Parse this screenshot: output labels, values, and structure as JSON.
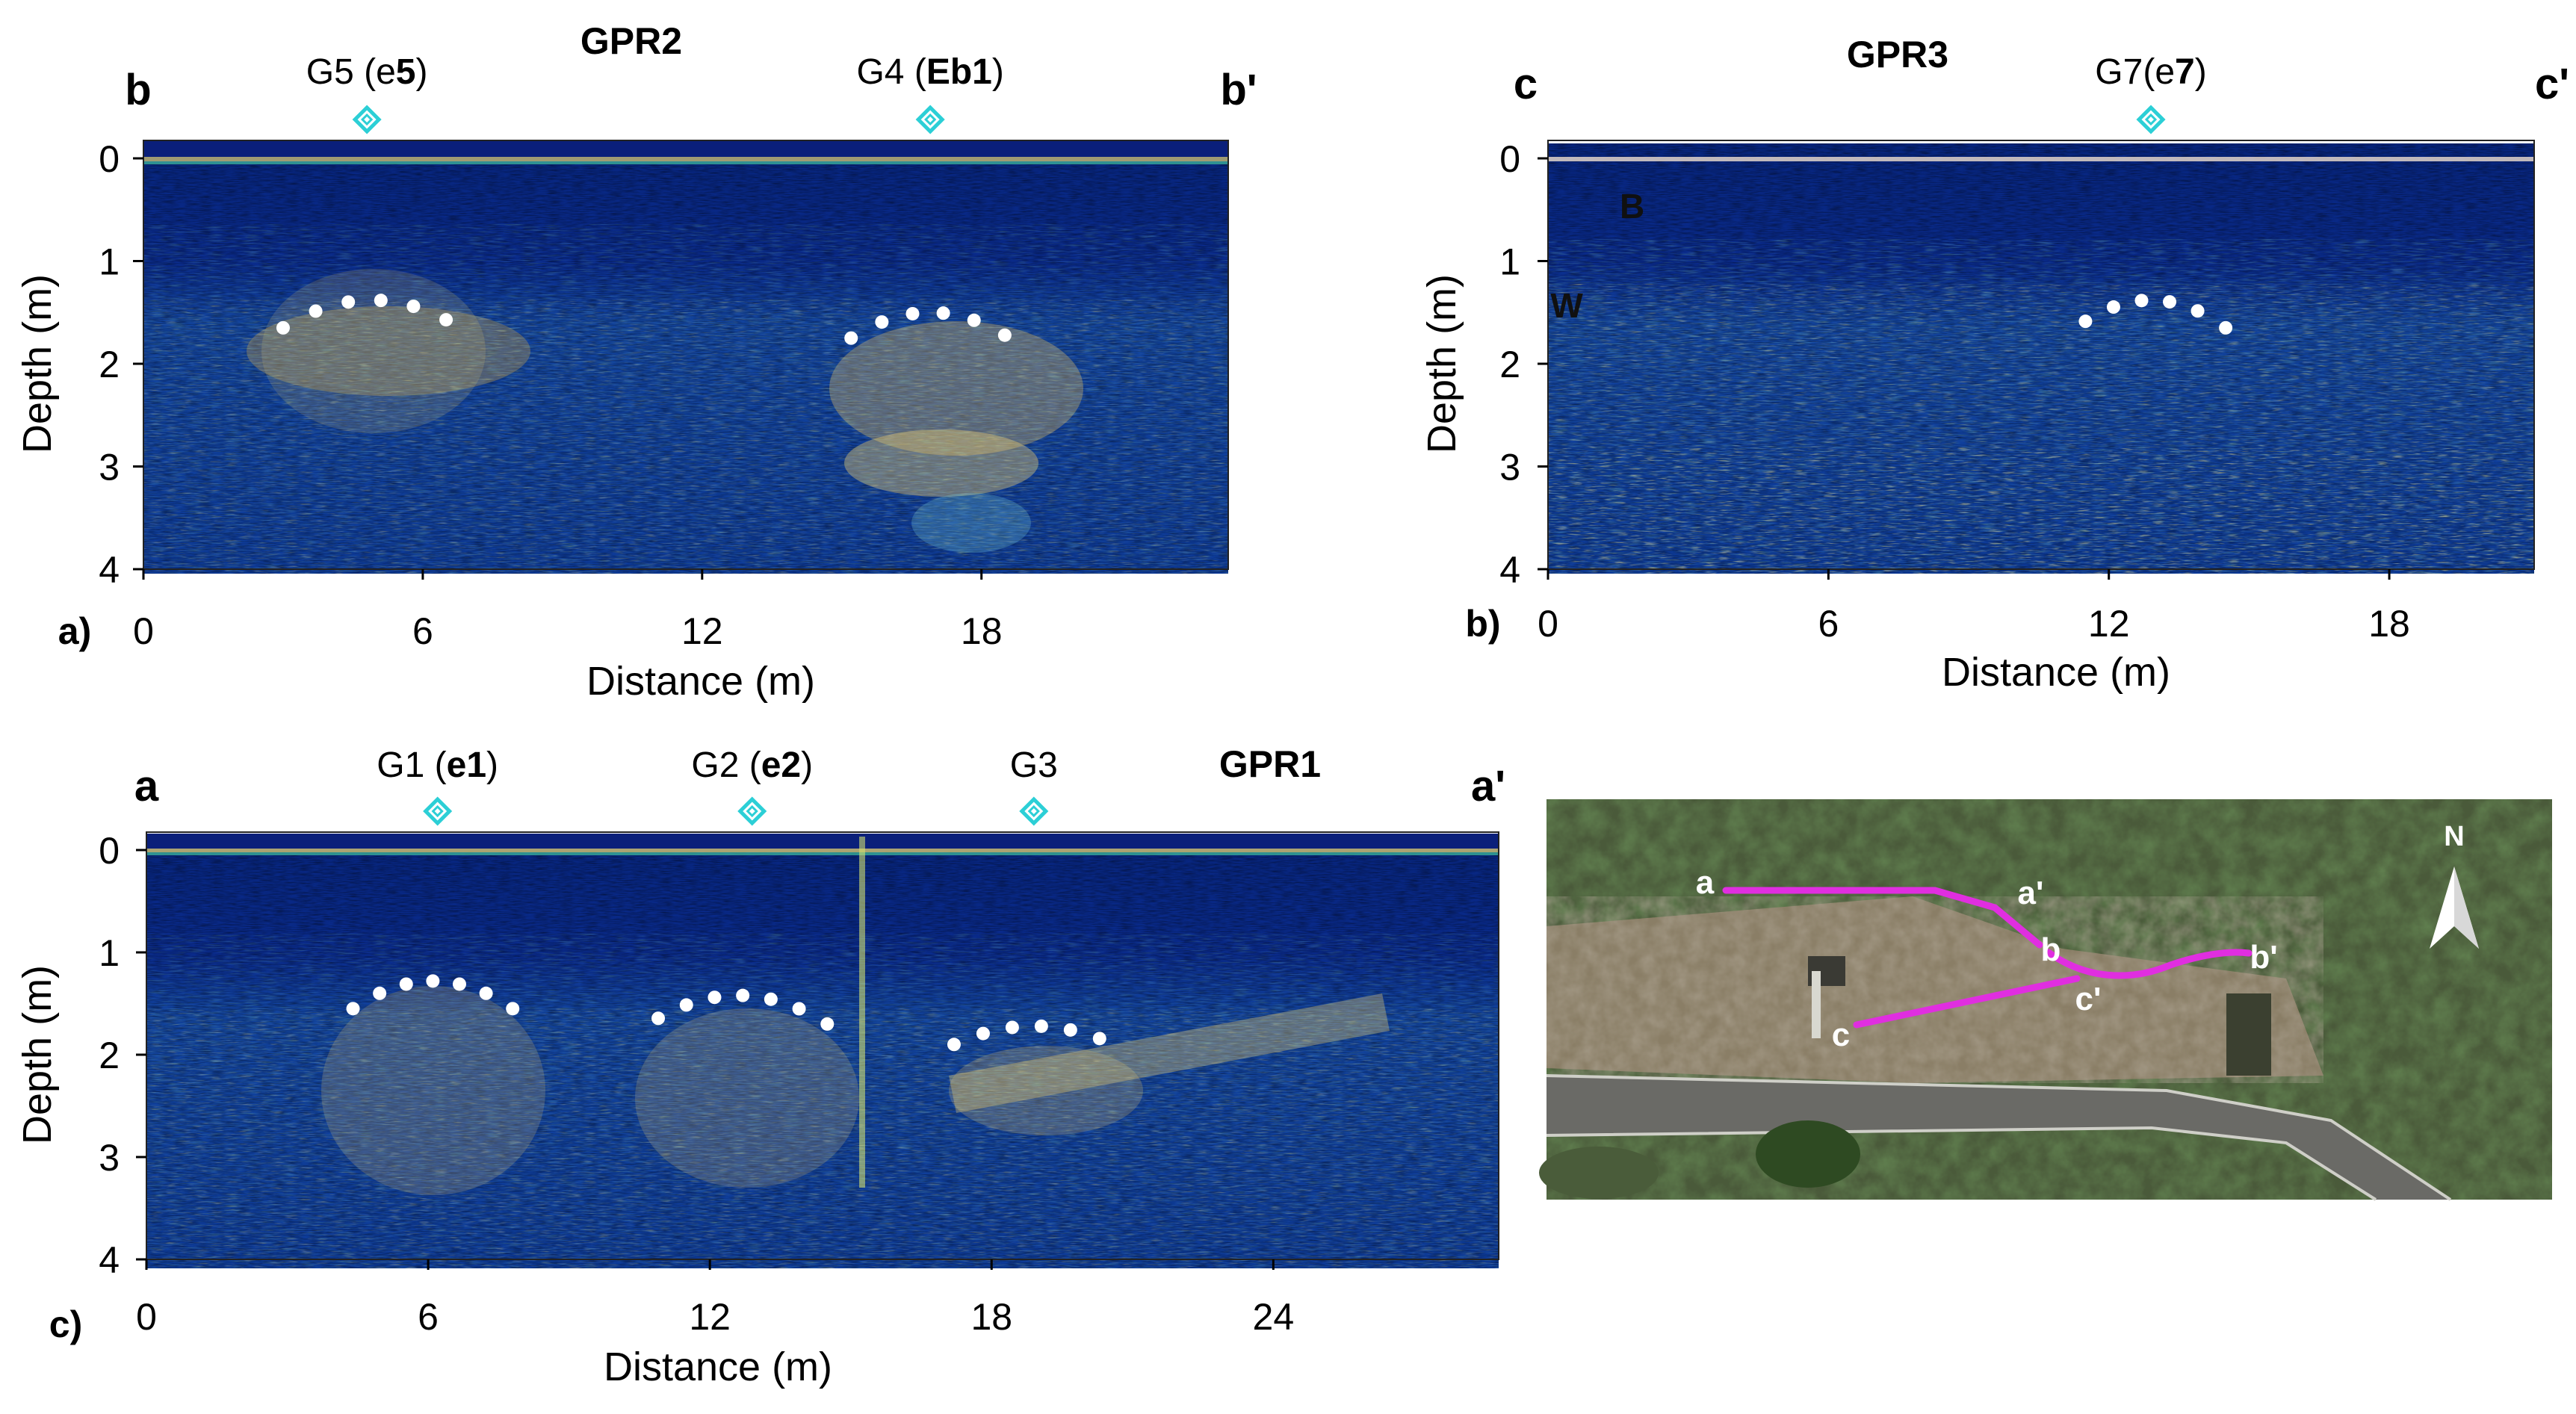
{
  "panels": [
    {
      "id": "gpr2",
      "letter": "a)",
      "title": "GPR2",
      "start_label": "b",
      "end_label": "b'",
      "ylabel": "Depth (m)",
      "xlabel": "Distance (m)",
      "x_ticks": [
        "0",
        "6",
        "12",
        "18"
      ],
      "y_ticks": [
        "0",
        "1",
        "2",
        "3",
        "4"
      ],
      "x_range": [
        0,
        23.3
      ],
      "y_range": [
        0,
        4
      ],
      "markers": [
        {
          "label": "G5 (e",
          "bold": "5",
          "close": ")",
          "distance": 4.8
        },
        {
          "label": "G4 (",
          "bold": "Eb1",
          "close": ")",
          "distance": 16.9
        }
      ],
      "hyperbolas": [
        {
          "x_start": 3.0,
          "x_end": 6.5,
          "apex_x": 4.9,
          "apex_depth": 1.38,
          "edge_depth": 1.65,
          "n": 6
        },
        {
          "x_start": 15.2,
          "x_end": 18.5,
          "apex_x": 16.9,
          "apex_depth": 1.5,
          "edge_depth": 1.75,
          "n": 6
        }
      ],
      "annotations": []
    },
    {
      "id": "gpr3",
      "letter": "b)",
      "title": "GPR3",
      "start_label": "c",
      "end_label": "c'",
      "ylabel": "Depth (m)",
      "xlabel": "Distance (m)",
      "x_ticks": [
        "0",
        "6",
        "12",
        "18"
      ],
      "y_ticks": [
        "0",
        "1",
        "2",
        "3",
        "4"
      ],
      "x_range": [
        0,
        21.1
      ],
      "y_range": [
        0,
        4
      ],
      "markers": [
        {
          "label": "G7(e",
          "bold": "7",
          "close": ")",
          "distance": 12.9
        }
      ],
      "hyperbolas": [
        {
          "x_start": 11.5,
          "x_end": 14.5,
          "apex_x": 12.9,
          "apex_depth": 1.38,
          "edge_depth": 1.65,
          "n": 6
        }
      ],
      "annotations": [
        "B",
        "W"
      ]
    },
    {
      "id": "gpr1",
      "letter": "c)",
      "title": "GPR1",
      "start_label": "a",
      "end_label": "a'",
      "ylabel": "Depth (m)",
      "xlabel": "Distance (m)",
      "x_ticks": [
        "0",
        "6",
        "12",
        "18",
        "24"
      ],
      "y_ticks": [
        "0",
        "1",
        "2",
        "3",
        "4"
      ],
      "x_range": [
        0,
        28.8
      ],
      "y_range": [
        0,
        4
      ],
      "markers": [
        {
          "label": "G1 (",
          "bold": "e1",
          "close": ")",
          "distance": 6.2
        },
        {
          "label": "G2 (",
          "bold": "e2",
          "close": ")",
          "distance": 12.9
        },
        {
          "label": "G3",
          "bold": "",
          "close": "",
          "distance": 18.9
        }
      ],
      "hyperbolas": [
        {
          "x_start": 4.4,
          "x_end": 7.8,
          "apex_x": 6.1,
          "apex_depth": 1.28,
          "edge_depth": 1.55,
          "n": 7
        },
        {
          "x_start": 10.9,
          "x_end": 14.5,
          "apex_x": 12.6,
          "apex_depth": 1.42,
          "edge_depth": 1.7,
          "n": 7
        },
        {
          "x_start": 17.2,
          "x_end": 20.3,
          "apex_x": 18.9,
          "apex_depth": 1.72,
          "edge_depth": 1.9,
          "n": 6
        }
      ],
      "annotations": []
    }
  ],
  "map": {
    "north_label": "N",
    "points": [
      "a",
      "a'",
      "b",
      "b'",
      "c",
      "c'"
    ],
    "line_color": "#e02ee0"
  },
  "colors": {
    "marker": "#2ccfd6",
    "hyperbola_dots": "#ffffff",
    "radar_bg": "#0b2f8e"
  }
}
